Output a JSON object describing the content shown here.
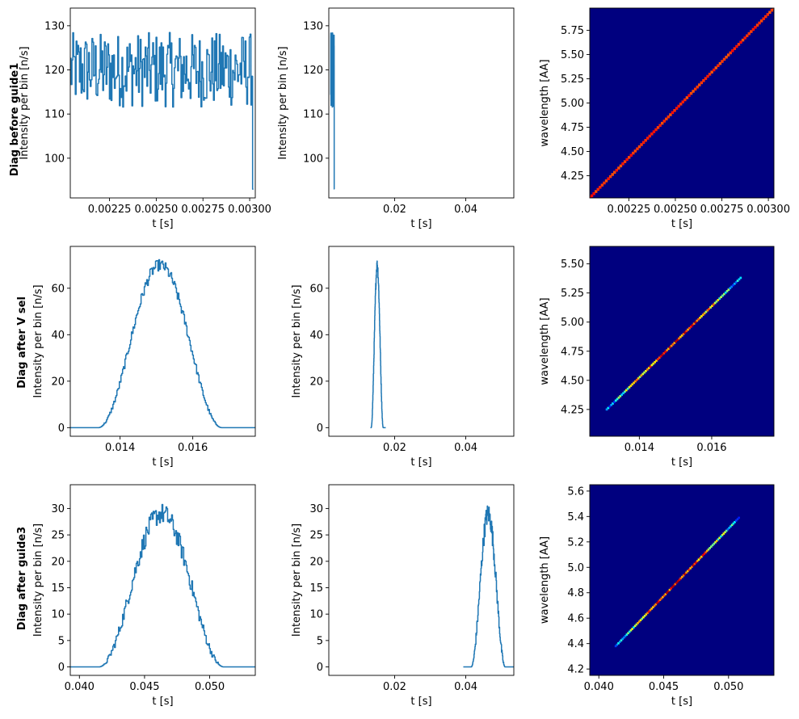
{
  "colors": {
    "line": "#1f77b4",
    "heatmap_bg": "#00007f",
    "frame": "#000000"
  },
  "rows": [
    {
      "title": "Diag before guide1",
      "ylabel": "Intensity per bin [n/s]"
    },
    {
      "title": "Diag after V sel",
      "ylabel": "Intensity per bin [n/s]"
    },
    {
      "title": "Diag after guide3",
      "ylabel": "Intensity per bin [n/s]"
    }
  ],
  "chart_data": [
    {
      "type": "line",
      "panel": "row1-col1",
      "xlabel": "t [s]",
      "ylabel": "Intensity per bin [n/s]",
      "xlim": [
        0.00204,
        0.00303
      ],
      "ylim": [
        91,
        134
      ],
      "xticks": [
        0.00225,
        0.0025,
        0.00275,
        0.003
      ],
      "xticklabels": [
        "0.00225",
        "0.00250",
        "0.00275",
        "0.00300"
      ],
      "yticks": [
        100,
        110,
        120,
        130
      ],
      "series": [
        {
          "kind": "noisy",
          "x_start": 0.00204,
          "x_end": 0.00302,
          "mean": 120,
          "noise": 5,
          "bins": 220,
          "end_value": 93
        }
      ]
    },
    {
      "type": "line",
      "panel": "row1-col2",
      "xlabel": "t [s]",
      "ylabel": "Intensity per bin [n/s]",
      "xlim": [
        0.0015,
        0.0535
      ],
      "ylim": [
        91,
        134
      ],
      "xticks": [
        0.02,
        0.04
      ],
      "xticklabels": [
        "0.02",
        "0.04"
      ],
      "yticks": [
        100,
        110,
        120,
        130
      ],
      "series": [
        {
          "kind": "noisy",
          "x_start": 0.00204,
          "x_end": 0.00302,
          "mean": 120,
          "noise": 5,
          "bins": 220,
          "end_value": 93
        }
      ]
    },
    {
      "type": "heatmap",
      "panel": "row1-col3",
      "xlabel": "t [s]",
      "ylabel": "wavelength [AA]",
      "xlim": [
        0.00204,
        0.00303
      ],
      "ylim": [
        4.02,
        5.98
      ],
      "xticks": [
        0.00225,
        0.0025,
        0.00275,
        0.003
      ],
      "xticklabels": [
        "0.00225",
        "0.00250",
        "0.00275",
        "0.00300"
      ],
      "yticks": [
        4.25,
        4.5,
        4.75,
        5.0,
        5.25,
        5.5,
        5.75
      ],
      "yticklabels": [
        "4.25",
        "4.50",
        "4.75",
        "5.00",
        "5.25",
        "5.50",
        "5.75"
      ],
      "diagonal": {
        "x0": 0.00204,
        "y0": 4.02,
        "x1": 0.00303,
        "y1": 5.98,
        "profile": "flat"
      }
    },
    {
      "type": "line",
      "panel": "row2-col1",
      "xlabel": "t [s]",
      "ylabel": "Intensity per bin [n/s]",
      "xlim": [
        0.01263,
        0.01772
      ],
      "ylim": [
        -3.7,
        78
      ],
      "xticks": [
        0.014,
        0.016
      ],
      "xticklabels": [
        "0.014",
        "0.016"
      ],
      "yticks": [
        0,
        20,
        40,
        60
      ],
      "series": [
        {
          "kind": "peak",
          "x_start": 0.01263,
          "x_end": 0.01772,
          "center": 0.0151,
          "halfwidth": 0.0017,
          "peak": 70,
          "noise": 2.5,
          "bins": 230
        }
      ]
    },
    {
      "type": "line",
      "panel": "row2-col2",
      "xlabel": "t [s]",
      "ylabel": "Intensity per bin [n/s]",
      "xlim": [
        0.0015,
        0.0535
      ],
      "ylim": [
        -3.7,
        78
      ],
      "xticks": [
        0.02,
        0.04
      ],
      "xticklabels": [
        "0.02",
        "0.04"
      ],
      "yticks": [
        0,
        20,
        40,
        60
      ],
      "series": [
        {
          "kind": "peak",
          "x_start": 0.0132,
          "x_end": 0.0175,
          "center": 0.0151,
          "halfwidth": 0.0017,
          "peak": 70,
          "noise": 2.5,
          "bins": 120
        }
      ]
    },
    {
      "type": "heatmap",
      "panel": "row2-col3",
      "xlabel": "t [s]",
      "ylabel": "wavelength [AA]",
      "xlim": [
        0.01263,
        0.01772
      ],
      "ylim": [
        4.02,
        5.65
      ],
      "xticks": [
        0.014,
        0.016
      ],
      "xticklabels": [
        "0.014",
        "0.016"
      ],
      "yticks": [
        4.25,
        4.5,
        4.75,
        5.0,
        5.25,
        5.5
      ],
      "yticklabels": [
        "4.25",
        "4.50",
        "4.75",
        "5.00",
        "5.25",
        "5.50"
      ],
      "diagonal": {
        "x0": 0.0131,
        "y0": 4.25,
        "x1": 0.0168,
        "y1": 5.38,
        "profile": "peak"
      }
    },
    {
      "type": "line",
      "panel": "row3-col1",
      "xlabel": "t [s]",
      "ylabel": "Intensity per bin [n/s]",
      "xlim": [
        0.0393,
        0.0535
      ],
      "ylim": [
        -1.6,
        34.5
      ],
      "xticks": [
        0.04,
        0.045,
        0.05
      ],
      "xticklabels": [
        "0.040",
        "0.045",
        "0.050"
      ],
      "yticks": [
        0,
        5,
        10,
        15,
        20,
        25,
        30
      ],
      "series": [
        {
          "kind": "peak",
          "x_start": 0.0393,
          "x_end": 0.0535,
          "center": 0.0463,
          "halfwidth": 0.0048,
          "peak": 29,
          "noise": 2,
          "bins": 230
        }
      ]
    },
    {
      "type": "line",
      "panel": "row3-col2",
      "xlabel": "t [s]",
      "ylabel": "Intensity per bin [n/s]",
      "xlim": [
        0.0015,
        0.0535
      ],
      "ylim": [
        -1.6,
        34.5
      ],
      "xticks": [
        0.02,
        0.04
      ],
      "xticklabels": [
        "0.02",
        "0.04"
      ],
      "yticks": [
        0,
        5,
        10,
        15,
        20,
        25,
        30
      ],
      "series": [
        {
          "kind": "peak",
          "x_start": 0.0393,
          "x_end": 0.0535,
          "center": 0.0463,
          "halfwidth": 0.0048,
          "peak": 29,
          "noise": 2,
          "bins": 160
        }
      ]
    },
    {
      "type": "heatmap",
      "panel": "row3-col3",
      "xlabel": "t [s]",
      "ylabel": "wavelength [AA]",
      "xlim": [
        0.0393,
        0.0535
      ],
      "ylim": [
        4.15,
        5.65
      ],
      "xticks": [
        0.04,
        0.045,
        0.05
      ],
      "xticklabels": [
        "0.040",
        "0.045",
        "0.050"
      ],
      "yticks": [
        4.2,
        4.4,
        4.6,
        4.8,
        5.0,
        5.2,
        5.4,
        5.6
      ],
      "yticklabels": [
        "4.2",
        "4.4",
        "4.6",
        "4.8",
        "5.0",
        "5.2",
        "5.4",
        "5.6"
      ],
      "diagonal": {
        "x0": 0.0413,
        "y0": 4.38,
        "x1": 0.0508,
        "y1": 5.39,
        "profile": "peak"
      }
    }
  ]
}
